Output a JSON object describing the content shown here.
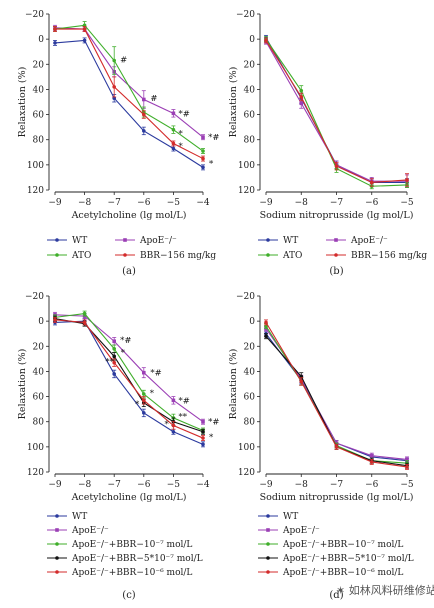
{
  "watermark": "✶ 如林风料研维修站",
  "chart_data": [
    {
      "type": "line",
      "panel_label": "(a)",
      "xlabel": "Acetylcholine (lg mol/L)",
      "ylabel": "Relaxation (%)",
      "x": [
        -9,
        -8,
        -7,
        -6,
        -5,
        -4
      ],
      "xticks": [
        "−9",
        "−8",
        "−7",
        "−6",
        "−5",
        "−4"
      ],
      "ylim": [
        -20,
        120
      ],
      "yticks": [
        "−20",
        "0",
        "20",
        "40",
        "60",
        "80",
        "100",
        "120"
      ],
      "y_inverted": true,
      "series": [
        {
          "name": "WT",
          "color": "#2b3a9e",
          "marker": "dot",
          "values": [
            3,
            1,
            47,
            73,
            87,
            102
          ],
          "err": [
            2,
            2,
            3,
            3,
            2,
            2
          ]
        },
        {
          "name": "ApoE⁻/⁻",
          "color": "#9b3fb5",
          "marker": "square",
          "values": [
            -9,
            -8,
            26,
            48,
            59,
            78
          ],
          "err": [
            2,
            2,
            4,
            7,
            3,
            2
          ]
        },
        {
          "name": "ATO",
          "color": "#3fae2a",
          "marker": "dot",
          "values": [
            -8,
            -11,
            17,
            58,
            72,
            89
          ],
          "err": [
            2,
            3,
            11,
            4,
            3,
            2
          ]
        },
        {
          "name": "BBR−156 mg/kg",
          "color": "#d32b2b",
          "marker": "dot",
          "values": [
            -8,
            -8,
            38,
            60,
            83,
            95
          ],
          "err": [
            2,
            2,
            8,
            3,
            2,
            2
          ]
        }
      ],
      "annotations": [
        {
          "text": "#",
          "x": -6.9,
          "y": 16
        },
        {
          "text": "#",
          "x": -5.88,
          "y": 47
        },
        {
          "text": "*#",
          "x": -4.93,
          "y": 59
        },
        {
          "text": "*",
          "x": -4.93,
          "y": 75
        },
        {
          "text": "*",
          "x": -4.93,
          "y": 85
        },
        {
          "text": "*#",
          "x": -3.93,
          "y": 78
        },
        {
          "text": "*",
          "x": -3.9,
          "y": 99
        }
      ],
      "legend": {
        "columns": 2,
        "placement": "bottom"
      }
    },
    {
      "type": "line",
      "panel_label": "(b)",
      "xlabel": "Sodium nitroprusside (lg mol/L)",
      "ylabel": "Relaxation (%)",
      "x": [
        -9,
        -8,
        -7,
        -6,
        -5
      ],
      "xticks": [
        "−9",
        "−8",
        "−7",
        "−6",
        "−5"
      ],
      "ylim": [
        -20,
        120
      ],
      "yticks": [
        "−20",
        "0",
        "20",
        "40",
        "60",
        "80",
        "100",
        "120"
      ],
      "y_inverted": true,
      "series": [
        {
          "name": "WT",
          "color": "#2b3a9e",
          "marker": "dot",
          "values": [
            -1,
            47,
            100,
            114,
            114
          ],
          "err": [
            2,
            4,
            3,
            3,
            3
          ]
        },
        {
          "name": "ApoE⁻/⁻",
          "color": "#9b3fb5",
          "marker": "square",
          "values": [
            2,
            51,
            100,
            113,
            113
          ],
          "err": [
            2,
            4,
            3,
            3,
            5
          ]
        },
        {
          "name": "ATO",
          "color": "#3fae2a",
          "marker": "dot",
          "values": [
            0,
            41,
            103,
            117,
            116
          ],
          "err": [
            2,
            4,
            3,
            2,
            2
          ]
        },
        {
          "name": "BBR−156 mg/kg",
          "color": "#d32b2b",
          "marker": "dot",
          "values": [
            1,
            46,
            101,
            114,
            112
          ],
          "err": [
            2,
            3,
            3,
            3,
            5
          ]
        }
      ],
      "legend": {
        "columns": 2,
        "placement": "bottom"
      }
    },
    {
      "type": "line",
      "panel_label": "(c)",
      "xlabel": "Acetylcholine (lg mol/L)",
      "ylabel": "Relaxation (%)",
      "x": [
        -9,
        -8,
        -7,
        -6,
        -5,
        -4
      ],
      "xticks": [
        "−9",
        "−8",
        "−7",
        "−6",
        "−5",
        "−4"
      ],
      "ylim": [
        -20,
        120
      ],
      "yticks": [
        "−20",
        "0",
        "20",
        "40",
        "60",
        "80",
        "100",
        "120"
      ],
      "y_inverted": true,
      "series": [
        {
          "name": "WT",
          "color": "#2b3a9e",
          "marker": "dot",
          "values": [
            1,
            0,
            42,
            73,
            88,
            98
          ],
          "err": [
            2,
            2,
            3,
            3,
            2,
            2
          ]
        },
        {
          "name": "ApoE⁻/⁻",
          "color": "#9b3fb5",
          "marker": "square",
          "values": [
            -5,
            -4,
            16,
            41,
            63,
            80
          ],
          "err": [
            2,
            2,
            3,
            4,
            3,
            2
          ]
        },
        {
          "name": "ApoE⁻/⁻+BBR−10⁻⁷ mol/L",
          "color": "#3fae2a",
          "marker": "dot",
          "values": [
            -3,
            -6,
            22,
            58,
            77,
            87
          ],
          "err": [
            2,
            2,
            3,
            3,
            3,
            2
          ]
        },
        {
          "name": "ApoE⁻/⁻+BBR−5*10⁻⁷ mol/L",
          "color": "#111111",
          "marker": "dot",
          "values": [
            -2,
            2,
            28,
            65,
            80,
            88
          ],
          "err": [
            2,
            2,
            3,
            3,
            3,
            2
          ]
        },
        {
          "name": "ApoE⁻/⁻+BBR−10⁻⁶ mol/L",
          "color": "#d32b2b",
          "marker": "dot",
          "values": [
            -1,
            1,
            33,
            63,
            83,
            93
          ],
          "err": [
            2,
            2,
            3,
            3,
            3,
            2
          ]
        }
      ],
      "annotations": [
        {
          "text": "*#",
          "x": -6.9,
          "y": 15
        },
        {
          "text": "*",
          "x": -6.88,
          "y": 25
        },
        {
          "text": "**",
          "x": -7.4,
          "y": 32
        },
        {
          "text": "*#",
          "x": -5.88,
          "y": 41
        },
        {
          "text": "*",
          "x": -5.9,
          "y": 57
        },
        {
          "text": "*",
          "x": -6.4,
          "y": 66
        },
        {
          "text": "*#",
          "x": -4.93,
          "y": 63
        },
        {
          "text": "**",
          "x": -4.93,
          "y": 76
        },
        {
          "text": "*",
          "x": -5.4,
          "y": 82
        },
        {
          "text": "*#",
          "x": -3.93,
          "y": 80
        },
        {
          "text": "*",
          "x": -3.9,
          "y": 92
        }
      ],
      "legend": {
        "columns": 1,
        "placement": "bottom"
      }
    },
    {
      "type": "line",
      "panel_label": "(d)",
      "xlabel": "Sodium nitroprusside (lg mol/L)",
      "ylabel": "Relaxation (%)",
      "x": [
        -9,
        -8,
        -7,
        -6,
        -5
      ],
      "xticks": [
        "−9",
        "−8",
        "−7",
        "−6",
        "−5"
      ],
      "ylim": [
        -20,
        120
      ],
      "yticks": [
        "−20",
        "0",
        "20",
        "40",
        "60",
        "80",
        "100",
        "120"
      ],
      "y_inverted": true,
      "series": [
        {
          "name": "WT",
          "color": "#2b3a9e",
          "marker": "dot",
          "values": [
            10,
            47,
            97,
            108,
            111
          ],
          "err": [
            2,
            3,
            2,
            2,
            2
          ]
        },
        {
          "name": "ApoE⁻/⁻",
          "color": "#9b3fb5",
          "marker": "square",
          "values": [
            6,
            46,
            97,
            107,
            110
          ],
          "err": [
            2,
            3,
            2,
            2,
            2
          ]
        },
        {
          "name": "ApoE⁻/⁻+BBR−10⁻⁷ mol/L",
          "color": "#3fae2a",
          "marker": "dot",
          "values": [
            4,
            48,
            99,
            111,
            113
          ],
          "err": [
            2,
            3,
            2,
            2,
            2
          ]
        },
        {
          "name": "ApoE⁻/⁻+BBR−5*10⁻⁷ mol/L",
          "color": "#111111",
          "marker": "dot",
          "values": [
            12,
            44,
            100,
            111,
            115
          ],
          "err": [
            2,
            3,
            2,
            2,
            2
          ]
        },
        {
          "name": "ApoE⁻/⁻+BBR−10⁻⁶ mol/L",
          "color": "#d32b2b",
          "marker": "dot",
          "values": [
            1,
            48,
            100,
            112,
            116
          ],
          "err": [
            2,
            3,
            2,
            2,
            2
          ]
        }
      ],
      "legend": {
        "columns": 1,
        "placement": "bottom"
      }
    }
  ]
}
